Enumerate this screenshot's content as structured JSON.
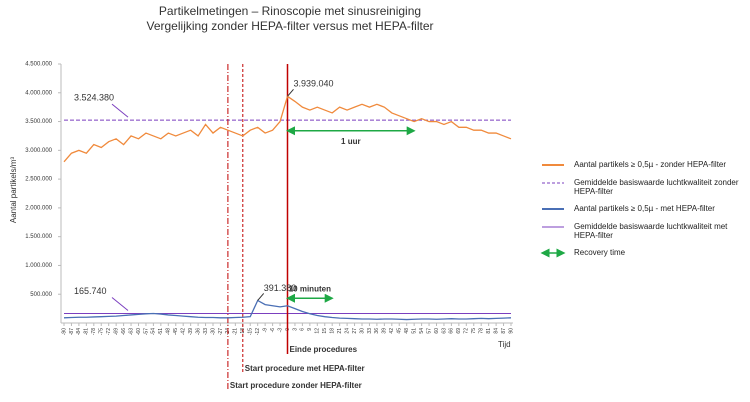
{
  "chart_data": {
    "type": "line",
    "title": "Partikelmetingen – Rinoscopie met sinusreiniging",
    "subtitle": "Vergelijking zonder HEPA-filter versus met HEPA-filter",
    "y_label": "Aantal partikels/m³",
    "x_label": "Tijd",
    "x": [
      -90,
      -87,
      -84,
      -81,
      -78,
      -75,
      -72,
      -69,
      -66,
      -63,
      -60,
      -57,
      -54,
      -51,
      -48,
      -45,
      -42,
      -39,
      -36,
      -33,
      -30,
      -27,
      -24,
      -21,
      -18,
      -15,
      -12,
      -9,
      -6,
      -3,
      0,
      3,
      6,
      9,
      12,
      15,
      18,
      21,
      24,
      27,
      30,
      33,
      36,
      39,
      42,
      45,
      48,
      51,
      54,
      57,
      60,
      63,
      66,
      69,
      72,
      75,
      78,
      81,
      84,
      87,
      90
    ],
    "xlim": [
      -90,
      90
    ],
    "xticks": [
      -90,
      -87,
      -84,
      -81,
      -78,
      -75,
      -72,
      -69,
      -66,
      -63,
      -60,
      -57,
      -54,
      -51,
      -48,
      -45,
      -42,
      -39,
      -36,
      -33,
      -30,
      -27,
      -24,
      -21,
      -18,
      -15,
      -12,
      -9,
      -6,
      -3,
      0,
      3,
      6,
      9,
      12,
      15,
      18,
      21,
      24,
      27,
      30,
      33,
      36,
      39,
      42,
      45,
      48,
      51,
      54,
      57,
      60,
      63,
      66,
      69,
      72,
      75,
      78,
      81,
      84,
      87,
      90
    ],
    "ylim": [
      0,
      4500000
    ],
    "yticks": [
      {
        "value": 500000,
        "label": "500.000"
      },
      {
        "value": 1000000,
        "label": "1.000.000"
      },
      {
        "value": 1500000,
        "label": "1.500.000"
      },
      {
        "value": 2000000,
        "label": "2.000.000"
      },
      {
        "value": 2500000,
        "label": "2.500.000"
      },
      {
        "value": 3000000,
        "label": "3.000.000"
      },
      {
        "value": 3500000,
        "label": "3.500.000"
      },
      {
        "value": 4000000,
        "label": "4.000.000"
      },
      {
        "value": 4500000,
        "label": "4.500.000"
      }
    ],
    "series": [
      {
        "name": "Aantal partikels ≥ 0,5µ - zonder HEPA-filter",
        "color": "#f08a3c",
        "values": [
          2800000,
          2950000,
          3000000,
          2950000,
          3100000,
          3050000,
          3150000,
          3200000,
          3100000,
          3250000,
          3200000,
          3300000,
          3250000,
          3200000,
          3300000,
          3250000,
          3300000,
          3350000,
          3250000,
          3450000,
          3300000,
          3400000,
          3350000,
          3300000,
          3250000,
          3350000,
          3400000,
          3300000,
          3350000,
          3500000,
          3939040,
          3850000,
          3750000,
          3700000,
          3750000,
          3700000,
          3650000,
          3750000,
          3700000,
          3750000,
          3800000,
          3750000,
          3800000,
          3750000,
          3650000,
          3600000,
          3550000,
          3500000,
          3550000,
          3500000,
          3500000,
          3450000,
          3500000,
          3400000,
          3400000,
          3350000,
          3350000,
          3300000,
          3300000,
          3250000,
          3200000
        ]
      },
      {
        "name": "Aantal partikels ≥ 0,5µ - met HEPA-filter",
        "color": "#4a6fb5",
        "values": [
          90000,
          95000,
          100000,
          100000,
          105000,
          110000,
          115000,
          120000,
          130000,
          140000,
          150000,
          160000,
          165000,
          155000,
          140000,
          130000,
          120000,
          110000,
          100000,
          95000,
          95000,
          90000,
          90000,
          95000,
          100000,
          110000,
          391380,
          320000,
          300000,
          280000,
          300000,
          250000,
          200000,
          160000,
          130000,
          110000,
          95000,
          85000,
          80000,
          75000,
          70000,
          70000,
          65000,
          70000,
          70000,
          65000,
          60000,
          65000,
          70000,
          70000,
          65000,
          70000,
          75000,
          70000,
          70000,
          75000,
          80000,
          75000,
          80000,
          85000,
          90000
        ]
      }
    ],
    "reference_lines": [
      {
        "name": "Gemiddelde basiswaarde luchtkwaliteit zonder HEPA-filter",
        "value": 3524380,
        "label": "3.524.380",
        "color": "#7b3fbf",
        "style": "dashed"
      },
      {
        "name": "Gemiddelde basiswaarde luchtkwaliteit met HEPA-filter",
        "value": 165740,
        "label": "165.740",
        "color": "#7b3fbf",
        "style": "solid"
      }
    ],
    "annotations": [
      {
        "text": "3.939.040",
        "x": 0,
        "y": 3939040
      },
      {
        "text": "391.380",
        "x": -12,
        "y": 391380
      }
    ],
    "events": [
      {
        "x": -24,
        "label": "Start procedure zonder HEPA-filter",
        "style": "dashdot"
      },
      {
        "x": -18,
        "label": "Start procedure met HEPA-filter",
        "style": "dashed"
      },
      {
        "x": 0,
        "label": "Einde procedures",
        "style": "solid"
      }
    ],
    "event_color": "#c00000",
    "recovery": {
      "name": "Recovery time",
      "color": "#1ea845",
      "arrows": [
        {
          "from": 0,
          "to": 51,
          "y": 3340000,
          "label": "1 uur"
        },
        {
          "from": 0,
          "to": 18,
          "y": 430000,
          "label": "10 minuten"
        }
      ]
    }
  }
}
